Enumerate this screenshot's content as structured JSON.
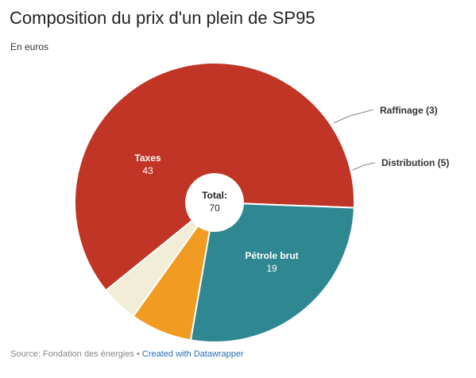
{
  "chart_data": {
    "type": "pie",
    "title": "Composition du prix d'un plein de SP95",
    "subtitle": "En euros",
    "total_label": "Total:",
    "total_value": "70",
    "slices": [
      {
        "label": "Taxes",
        "value": 43,
        "color": "#c03525",
        "label_position": "inside"
      },
      {
        "label": "Pétrole brut",
        "value": 19,
        "color": "#2e8791",
        "label_position": "inside"
      },
      {
        "label": "Distribution",
        "value": 5,
        "color": "#f29b22",
        "label_position": "outside"
      },
      {
        "label": "Raffinage",
        "value": 3,
        "color": "#f1edd6",
        "label_position": "outside"
      }
    ],
    "outside_labels": [
      "Raffinage (3)",
      "Distribution (5)"
    ],
    "inside_values": [
      "43",
      "19"
    ]
  },
  "footer": {
    "source": "Source: Fondation des énergies",
    "separator": " • ",
    "credit": "Created with Datawrapper"
  }
}
